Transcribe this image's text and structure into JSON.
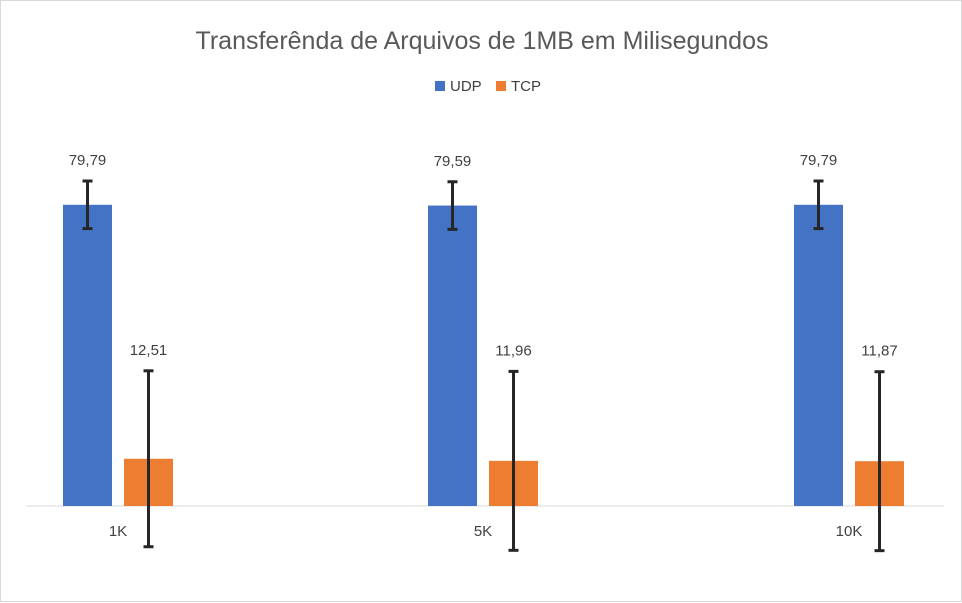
{
  "chart_data": {
    "type": "bar",
    "title": "Transferênda  de Arquivos de 1MB em Milisegundos",
    "categories": [
      "1K",
      "5K",
      "10K"
    ],
    "series": [
      {
        "name": "UDP",
        "values": [
          79.79,
          79.59,
          79.79
        ],
        "labels": [
          "79,79",
          "79,59",
          "79,79"
        ],
        "error": [
          6.3,
          6.3,
          6.3
        ],
        "color": "#4472C4"
      },
      {
        "name": "TCP",
        "values": [
          12.51,
          11.96,
          11.87
        ],
        "labels": [
          "12,51",
          "11,96",
          "11,87"
        ],
        "error": [
          23.3,
          23.7,
          23.7
        ],
        "color": "#ED7D31"
      }
    ],
    "ylim": [
      -12,
      93
    ],
    "grid": false,
    "legend": "top-center",
    "xlabel": "",
    "ylabel": ""
  }
}
